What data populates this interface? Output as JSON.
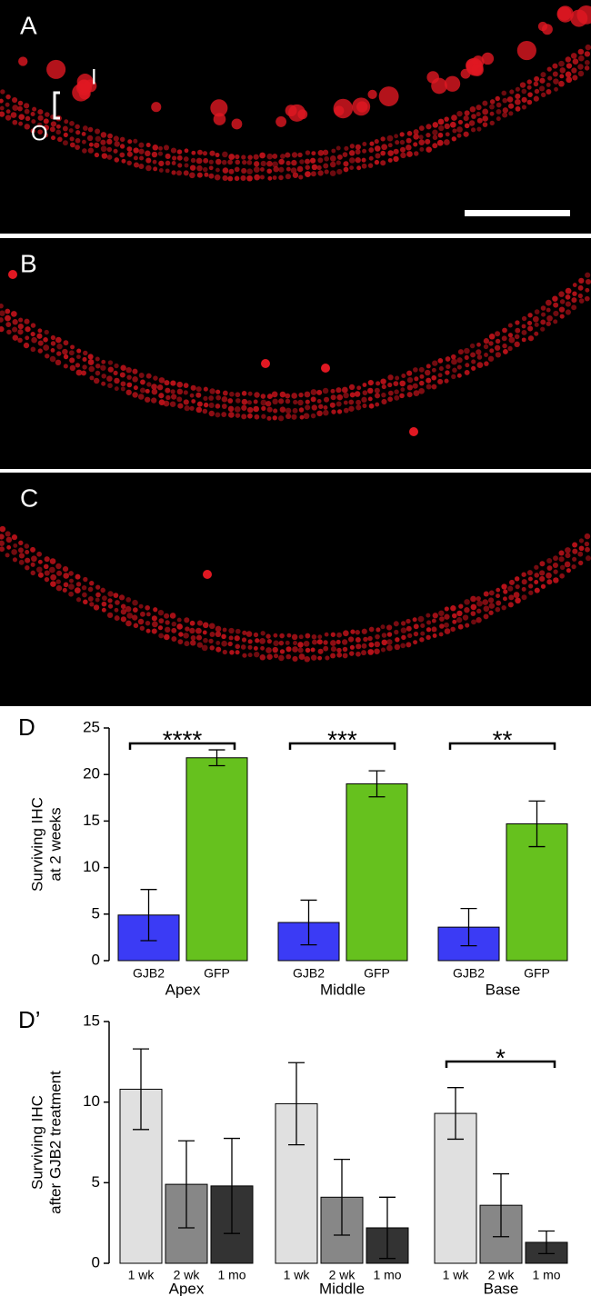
{
  "panels": [
    {
      "label": "A",
      "annotations": [
        "I",
        "O"
      ]
    },
    {
      "label": "B"
    },
    {
      "label": "C"
    }
  ],
  "chart_data": [
    {
      "type": "bar",
      "label": "D",
      "y_label": [
        "Surviving IHC",
        "at 2 weeks"
      ],
      "categories": [
        "Apex",
        "Middle",
        "Base"
      ],
      "series": [
        {
          "name": "GJB2",
          "color": "#3b3bf5",
          "values": [
            4.9,
            4.1,
            3.6
          ],
          "errors": [
            2.75,
            2.4,
            2.0
          ]
        },
        {
          "name": "GFP",
          "color": "#66c11e",
          "values": [
            21.8,
            19.0,
            14.7
          ],
          "errors": [
            0.85,
            1.4,
            2.45
          ]
        }
      ],
      "significance": [
        "****",
        "***",
        "**"
      ],
      "ylim": [
        0,
        25
      ],
      "yticks": [
        0,
        5,
        10,
        15,
        20,
        25
      ]
    },
    {
      "type": "bar",
      "label": "D’",
      "y_label": [
        "Surviving IHC",
        "after GJB2 treatment"
      ],
      "categories": [
        "Apex",
        "Middle",
        "Base"
      ],
      "series": [
        {
          "name": "1 wk",
          "color": "#e0e0e0",
          "values": [
            10.8,
            9.9,
            9.3
          ],
          "errors": [
            2.5,
            2.55,
            1.6
          ]
        },
        {
          "name": "2 wk",
          "color": "#878787",
          "values": [
            4.9,
            4.1,
            3.6
          ],
          "errors": [
            2.7,
            2.35,
            1.95
          ]
        },
        {
          "name": "1 mo",
          "color": "#333333",
          "values": [
            4.8,
            2.2,
            1.3
          ],
          "errors": [
            2.95,
            1.9,
            0.7
          ]
        }
      ],
      "significance": [
        null,
        null,
        "*"
      ],
      "ylim": [
        0,
        15
      ],
      "yticks": [
        0,
        5,
        10,
        15
      ]
    }
  ]
}
